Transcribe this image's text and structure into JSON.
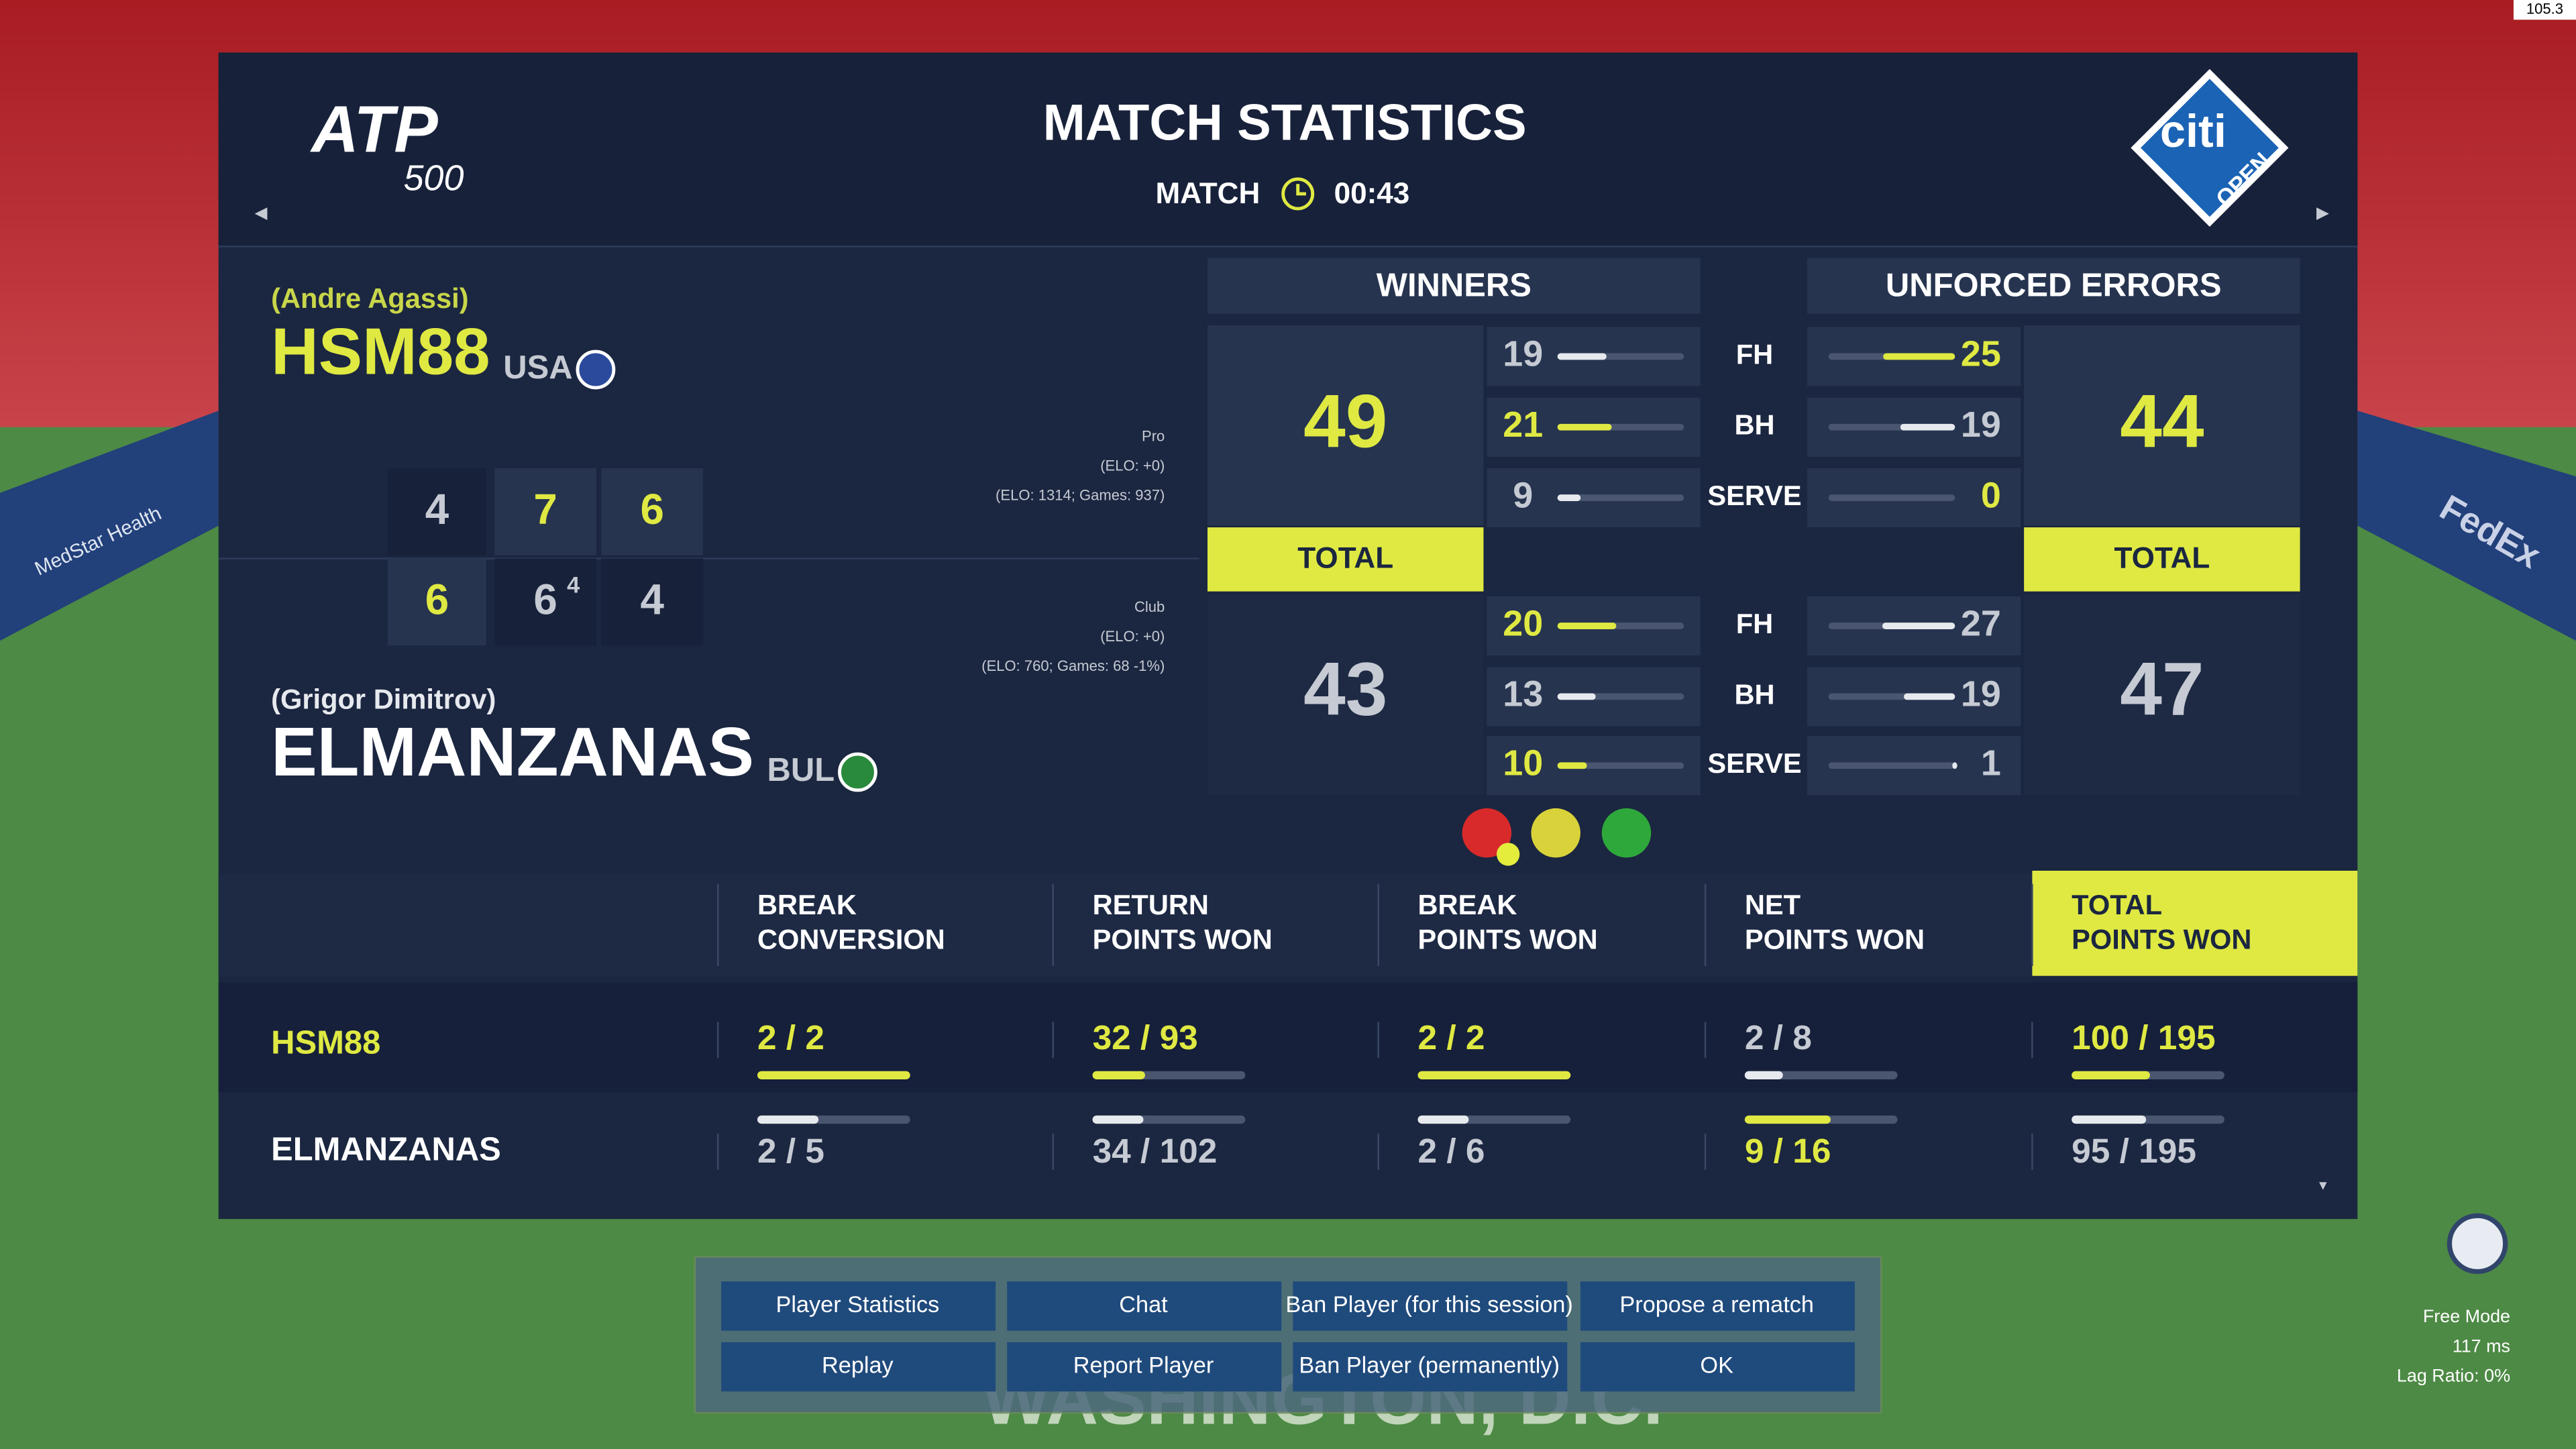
{
  "header": {
    "title": "MATCH STATISTICS",
    "match_label": "MATCH",
    "time": "00:43",
    "logo_left": "ATP",
    "logo_left_tier": "500",
    "logo_right": "citi",
    "logo_right_sub": "OPEN"
  },
  "players": [
    {
      "real_name": "(Andre Agassi)",
      "name": "HSM88",
      "country": "USA",
      "level": "Pro",
      "elo": "(ELO: +0)",
      "elo_detail": "(ELO: 1314; Games: 937)",
      "sets": [
        4,
        7,
        6
      ],
      "tiebreaks": [
        null,
        null,
        null
      ]
    },
    {
      "real_name": "(Grigor Dimitrov)",
      "name": "ELMANZANAS",
      "country": "BUL",
      "level": "Club",
      "elo": "(ELO: +0)",
      "elo_detail": "(ELO: 760; Games: 68 -1%)",
      "sets": [
        6,
        6,
        4
      ],
      "tiebreaks": [
        null,
        4,
        null
      ]
    }
  ],
  "shots": [
    "FH",
    "BH",
    "SERVE"
  ],
  "winners": {
    "header": "WINNERS",
    "total_label": "TOTAL",
    "players": [
      {
        "total": 49,
        "values": [
          19,
          21,
          9
        ]
      },
      {
        "total": 43,
        "values": [
          20,
          13,
          10
        ]
      }
    ]
  },
  "unforced_errors": {
    "header": "UNFORCED ERRORS",
    "total_label": "TOTAL",
    "players": [
      {
        "total": 44,
        "values": [
          25,
          19,
          0
        ]
      },
      {
        "total": 47,
        "values": [
          27,
          19,
          1
        ]
      }
    ]
  },
  "table": {
    "columns": [
      [
        "BREAK",
        "CONVERSION"
      ],
      [
        "RETURN",
        "POINTS WON"
      ],
      [
        "BREAK",
        "POINTS WON"
      ],
      [
        "NET",
        "POINTS WON"
      ],
      [
        "TOTAL",
        "POINTS WON"
      ]
    ],
    "rows": [
      [
        {
          "label": "2 / 2",
          "won": 2,
          "total": 2
        },
        {
          "label": "32 / 93",
          "won": 32,
          "total": 93
        },
        {
          "label": "2 / 2",
          "won": 2,
          "total": 2
        },
        {
          "label": "2 / 8",
          "won": 2,
          "total": 8
        },
        {
          "label": "100 / 195",
          "won": 100,
          "total": 195
        }
      ],
      [
        {
          "label": "2 / 5",
          "won": 2,
          "total": 5
        },
        {
          "label": "34 / 102",
          "won": 34,
          "total": 102
        },
        {
          "label": "2 / 6",
          "won": 2,
          "total": 6
        },
        {
          "label": "9 / 16",
          "won": 9,
          "total": 16
        },
        {
          "label": "95 / 195",
          "won": 95,
          "total": 195
        }
      ]
    ]
  },
  "buttons": [
    [
      "Player Statistics",
      "Chat",
      "Ban Player (for this session)",
      "Propose a rematch"
    ],
    [
      "Replay",
      "Report Player",
      "Ban Player (permanently)",
      "OK"
    ]
  ],
  "status": {
    "mode": "Free Mode",
    "ping": "117 ms",
    "lag": "Lag Ratio: 0%",
    "fps": "105.3"
  },
  "background": {
    "sponsor_left": "MedStar Health",
    "sponsor_right": "FedEx",
    "city": "WASHINGTON, D.C."
  }
}
